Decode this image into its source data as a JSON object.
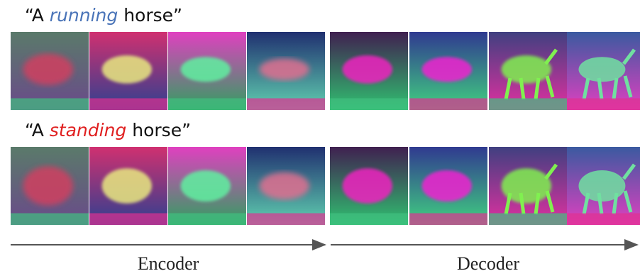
{
  "rows": [
    {
      "prefix": "“A ",
      "highlight": "running",
      "suffix": " horse”"
    },
    {
      "prefix": "“A ",
      "highlight": "standing",
      "suffix": " horse”"
    }
  ],
  "labels": {
    "encoder": "Encoder",
    "decoder": "Decoder"
  }
}
